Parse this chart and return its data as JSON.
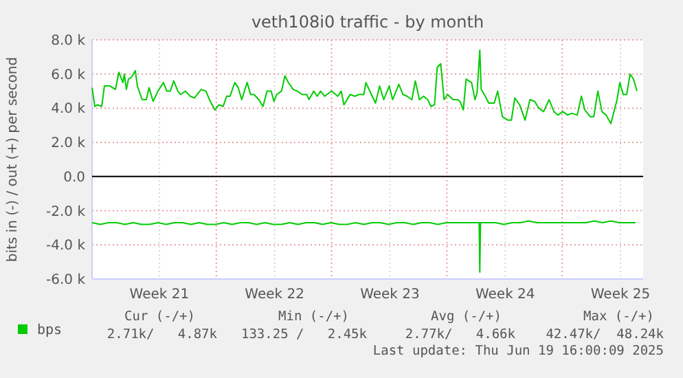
{
  "chart_data": {
    "type": "line",
    "title": "veth108i0 traffic - by month",
    "ylabel": "bits in (-) / out (+) per second",
    "xlim": [
      "2025-05-17T14:00",
      "2025-06-20T01:00"
    ],
    "ylim": [
      -6,
      8
    ],
    "xticks": [
      {
        "value": "2025-05-21T16:00",
        "label": "Week 21"
      },
      {
        "value": "2025-05-28T16:00",
        "label": "Week 22"
      },
      {
        "value": "2025-06-04T16:00",
        "label": "Week 23"
      },
      {
        "value": "2025-06-11T16:00",
        "label": "Week 24"
      },
      {
        "value": "2025-06-18T16:00",
        "label": "Week 25"
      },
      {
        "value": "2025-05-25T03:00",
        "label": null
      },
      {
        "value": "2025-06-01T03:00",
        "label": null
      },
      {
        "value": "2025-06-08T03:00",
        "label": null
      },
      {
        "value": "2025-06-15T03:00",
        "label": null
      }
    ],
    "yticks": [
      {
        "value": 8,
        "label": "8.0 k"
      },
      {
        "value": 6,
        "label": "6.0 k"
      },
      {
        "value": 4,
        "label": "4.0 k"
      },
      {
        "value": 2,
        "label": "2.0 k"
      },
      {
        "value": 0,
        "label": "0.0"
      },
      {
        "value": -2,
        "label": "-2.0 k"
      },
      {
        "value": -4,
        "label": "-4.0 k"
      },
      {
        "value": -6,
        "label": "-6.0 k"
      }
    ],
    "grid": true,
    "legend": "bottom left",
    "marker": "none",
    "line_style": "solid",
    "ref_lines": [
      {
        "axis": "y",
        "value": 0,
        "color": "#000000"
      }
    ],
    "series": [
      {
        "name": "bps",
        "color": "#00cc00",
        "x": [
          "2025-05-17T14:00",
          "2025-05-17T18:00",
          "2025-05-17T22:00",
          "2025-05-18T04:00",
          "2025-05-18T08:00",
          "2025-05-18T16:00",
          "2025-05-19T00:00",
          "2025-05-19T05:00",
          "2025-05-19T11:00",
          "2025-05-19T13:00",
          "2025-05-19T16:00",
          "2025-05-19T19:00",
          "2025-05-19T23:00",
          "2025-05-20T05:00",
          "2025-05-20T08:00",
          "2025-05-20T15:00",
          "2025-05-20T21:00",
          "2025-05-21T01:00",
          "2025-05-21T07:00",
          "2025-05-21T14:00",
          "2025-05-21T22:00",
          "2025-05-22T03:00",
          "2025-05-22T08:00",
          "2025-05-22T13:00",
          "2025-05-22T19:00",
          "2025-05-22T23:00",
          "2025-05-23T06:00",
          "2025-05-23T13:00",
          "2025-05-23T19:00",
          "2025-05-24T05:00",
          "2025-05-24T12:00",
          "2025-05-24T17:00",
          "2025-05-25T01:00",
          "2025-05-25T07:00",
          "2025-05-25T13:00",
          "2025-05-25T18:00",
          "2025-05-25T23:00",
          "2025-05-26T06:00",
          "2025-05-26T11:00",
          "2025-05-26T16:00",
          "2025-05-27T00:00",
          "2025-05-27T05:00",
          "2025-05-27T10:00",
          "2025-05-27T17:00",
          "2025-05-27T23:00",
          "2025-05-28T05:00",
          "2025-05-28T11:00",
          "2025-05-28T15:00",
          "2025-05-28T19:00",
          "2025-05-29T02:00",
          "2025-05-29T07:00",
          "2025-05-29T12:00",
          "2025-05-29T19:00",
          "2025-05-30T01:00",
          "2025-05-30T08:00",
          "2025-05-30T15:00",
          "2025-05-30T18:00",
          "2025-05-31T01:00",
          "2025-05-31T06:00",
          "2025-05-31T11:00",
          "2025-05-31T17:00",
          "2025-06-01T03:00",
          "2025-06-01T12:00",
          "2025-06-01T17:00",
          "2025-06-01T21:00",
          "2025-06-02T06:00",
          "2025-06-02T13:00",
          "2025-06-02T19:00",
          "2025-06-03T02:00",
          "2025-06-03T05:00",
          "2025-06-03T13:00",
          "2025-06-03T19:00",
          "2025-06-04T01:00",
          "2025-06-04T07:00",
          "2025-06-04T15:00",
          "2025-06-04T20:00",
          "2025-06-05T05:00",
          "2025-06-05T11:00",
          "2025-06-05T17:00",
          "2025-06-06T00:00",
          "2025-06-06T05:00",
          "2025-06-06T11:00",
          "2025-06-06T17:00",
          "2025-06-06T23:00",
          "2025-06-07T04:00",
          "2025-06-07T09:00",
          "2025-06-07T13:00",
          "2025-06-07T18:00",
          "2025-06-07T23:00",
          "2025-06-08T04:00",
          "2025-06-08T12:00",
          "2025-06-08T19:00",
          "2025-06-08T22:00",
          "2025-06-09T03:00",
          "2025-06-09T07:00",
          "2025-06-09T15:00",
          "2025-06-09T20:00",
          "2025-06-09T23:00",
          "2025-06-10T03:00",
          "2025-06-10T05:00",
          "2025-06-10T11:00",
          "2025-06-10T16:00",
          "2025-06-11T00:00",
          "2025-06-11T05:00",
          "2025-06-11T12:00",
          "2025-06-11T20:00",
          "2025-06-12T01:00",
          "2025-06-12T06:00",
          "2025-06-12T13:00",
          "2025-06-12T21:00",
          "2025-06-13T04:00",
          "2025-06-13T11:00",
          "2025-06-13T17:00",
          "2025-06-14T00:00",
          "2025-06-14T08:00",
          "2025-06-14T15:00",
          "2025-06-14T21:00",
          "2025-06-15T04:00",
          "2025-06-15T11:00",
          "2025-06-15T17:00",
          "2025-06-16T01:00",
          "2025-06-16T07:00",
          "2025-06-16T12:00",
          "2025-06-16T20:00",
          "2025-06-17T01:00",
          "2025-06-17T07:00",
          "2025-06-17T13:00",
          "2025-06-17T19:00",
          "2025-06-18T02:00",
          "2025-06-18T11:00",
          "2025-06-18T15:00",
          "2025-06-18T20:00",
          "2025-06-19T01:00",
          "2025-06-19T06:00",
          "2025-06-19T11:00",
          "2025-06-19T16:00"
        ],
        "values": [
          5.2,
          4.1,
          4.2,
          4.1,
          5.3,
          5.3,
          5.1,
          6.1,
          5.5,
          6.0,
          5.1,
          5.7,
          5.8,
          6.2,
          5.3,
          4.5,
          4.5,
          5.2,
          4.4,
          5.0,
          5.5,
          5.0,
          5.0,
          5.6,
          5.0,
          4.8,
          5.0,
          4.7,
          4.6,
          5.1,
          5.0,
          4.5,
          3.9,
          4.2,
          4.1,
          4.7,
          4.7,
          5.5,
          5.2,
          4.5,
          5.5,
          4.8,
          4.8,
          4.5,
          4.1,
          5.0,
          5.0,
          4.4,
          4.8,
          5.0,
          5.9,
          5.5,
          5.1,
          5.0,
          4.8,
          4.8,
          4.5,
          5.0,
          4.7,
          5.0,
          4.7,
          5.0,
          4.7,
          5.0,
          4.2,
          4.8,
          4.7,
          4.8,
          4.8,
          5.5,
          4.8,
          4.3,
          5.3,
          4.5,
          5.3,
          4.5,
          5.4,
          4.8,
          4.7,
          4.5,
          5.6,
          4.5,
          4.7,
          4.5,
          4.1,
          4.2,
          6.4,
          6.6,
          4.5,
          4.8,
          4.5,
          4.5,
          4.4,
          3.9,
          5.7,
          5.5,
          4.5,
          4.9,
          7.4,
          5.1,
          4.7,
          4.3,
          4.3,
          5.0,
          3.5,
          3.3,
          3.3,
          4.6,
          4.2,
          3.3,
          4.5,
          4.4,
          4.0,
          3.8,
          4.5,
          3.8,
          3.6,
          3.8,
          3.6,
          3.7,
          3.6,
          4.7,
          3.9,
          3.5,
          3.5,
          5.0,
          3.8,
          3.6,
          3.1,
          4.5,
          5.5,
          4.8,
          4.8,
          6.0,
          5.7,
          5.0
        ]
      },
      {
        "color": "#00cc00",
        "x": [
          "2025-05-17T14:00",
          "2025-05-18T02:00",
          "2025-05-18T14:00",
          "2025-05-19T02:00",
          "2025-05-19T14:00",
          "2025-05-20T02:00",
          "2025-05-20T14:00",
          "2025-05-21T02:00",
          "2025-05-21T14:00",
          "2025-05-22T02:00",
          "2025-05-22T14:00",
          "2025-05-23T02:00",
          "2025-05-23T14:00",
          "2025-05-24T02:00",
          "2025-05-24T14:00",
          "2025-05-25T02:00",
          "2025-05-25T14:00",
          "2025-05-26T02:00",
          "2025-05-26T14:00",
          "2025-05-27T02:00",
          "2025-05-27T14:00",
          "2025-05-28T02:00",
          "2025-05-28T14:00",
          "2025-05-29T02:00",
          "2025-05-29T14:00",
          "2025-05-30T02:00",
          "2025-05-30T14:00",
          "2025-05-31T02:00",
          "2025-05-31T14:00",
          "2025-06-01T02:00",
          "2025-06-01T14:00",
          "2025-06-02T02:00",
          "2025-06-02T14:00",
          "2025-06-03T02:00",
          "2025-06-03T14:00",
          "2025-06-04T02:00",
          "2025-06-04T14:00",
          "2025-06-05T02:00",
          "2025-06-05T14:00",
          "2025-06-06T02:00",
          "2025-06-06T14:00",
          "2025-06-07T02:00",
          "2025-06-07T14:00",
          "2025-06-08T02:00",
          "2025-06-08T14:00",
          "2025-06-09T02:00",
          "2025-06-09T14:00",
          "2025-06-10T02:00",
          "2025-06-10T03:00",
          "2025-06-10T04:00",
          "2025-06-10T14:00",
          "2025-06-11T02:00",
          "2025-06-11T14:00",
          "2025-06-12T02:00",
          "2025-06-12T14:00",
          "2025-06-13T02:00",
          "2025-06-13T14:00",
          "2025-06-14T02:00",
          "2025-06-14T14:00",
          "2025-06-15T02:00",
          "2025-06-15T14:00",
          "2025-06-16T02:00",
          "2025-06-16T14:00",
          "2025-06-17T02:00",
          "2025-06-17T14:00",
          "2025-06-18T02:00",
          "2025-06-18T14:00",
          "2025-06-19T02:00",
          "2025-06-19T14:00"
        ],
        "values": [
          -2.7,
          -2.8,
          -2.7,
          -2.7,
          -2.8,
          -2.7,
          -2.8,
          -2.8,
          -2.7,
          -2.8,
          -2.7,
          -2.7,
          -2.8,
          -2.7,
          -2.8,
          -2.8,
          -2.7,
          -2.8,
          -2.7,
          -2.7,
          -2.8,
          -2.7,
          -2.8,
          -2.8,
          -2.7,
          -2.8,
          -2.7,
          -2.7,
          -2.8,
          -2.7,
          -2.8,
          -2.8,
          -2.7,
          -2.8,
          -2.7,
          -2.7,
          -2.8,
          -2.7,
          -2.7,
          -2.8,
          -2.7,
          -2.7,
          -2.8,
          -2.7,
          -2.7,
          -2.7,
          -2.7,
          -2.7,
          -5.6,
          -2.7,
          -2.7,
          -2.7,
          -2.8,
          -2.7,
          -2.7,
          -2.6,
          -2.7,
          -2.7,
          -2.7,
          -2.7,
          -2.7,
          -2.7,
          -2.7,
          -2.6,
          -2.7,
          -2.6,
          -2.7,
          -2.7,
          -2.7
        ]
      }
    ],
    "annotations": [
      "Cur (-/+)",
      "Min (-/+)",
      "Avg (-/+)",
      "Max (-/+)",
      "2.71k/   4.87k",
      "133.25 /   2.45k",
      "2.77k/   4.66k",
      "42.47k/  48.24k",
      "Last update: Thu Jun 19 16:00:09 2025"
    ]
  }
}
